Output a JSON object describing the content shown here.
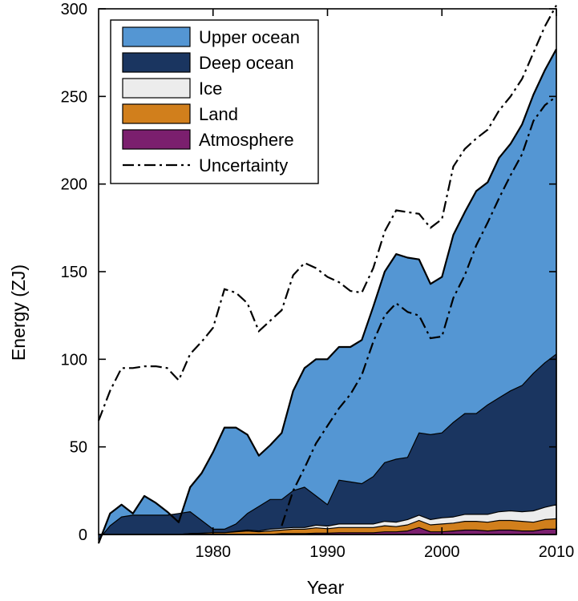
{
  "chart_data": {
    "type": "area",
    "title": "",
    "xlabel": "Year",
    "ylabel": "Energy (ZJ)",
    "xlim": [
      1970,
      2010
    ],
    "ylim": [
      0,
      300
    ],
    "x_ticks": [
      1980,
      1990,
      2000,
      2010
    ],
    "y_ticks": [
      0,
      50,
      100,
      150,
      200,
      250,
      300
    ],
    "grid": false,
    "legend_position": "top-left",
    "x": [
      1970,
      1971,
      1972,
      1973,
      1974,
      1975,
      1976,
      1977,
      1978,
      1979,
      1980,
      1981,
      1982,
      1983,
      1984,
      1985,
      1986,
      1987,
      1988,
      1989,
      1990,
      1991,
      1992,
      1993,
      1994,
      1995,
      1996,
      1997,
      1998,
      1999,
      2000,
      2001,
      2002,
      2003,
      2004,
      2005,
      2006,
      2007,
      2008,
      2009,
      2010
    ],
    "stacking_order": [
      "Atmosphere",
      "Land",
      "Ice",
      "Deep ocean",
      "Upper ocean"
    ],
    "series": [
      {
        "name": "Atmosphere",
        "color": "#7b1f6e",
        "cumulative": false,
        "values": [
          0,
          0,
          0,
          0,
          0,
          0,
          0,
          0,
          0,
          0,
          0,
          0,
          0,
          0,
          0,
          0,
          0.5,
          0.5,
          0.5,
          0.8,
          0.8,
          1,
          1,
          1,
          1,
          1.5,
          1.5,
          2,
          4,
          1.5,
          1.5,
          2,
          2.5,
          2.5,
          2,
          2.5,
          2.5,
          2,
          2,
          3,
          3
        ]
      },
      {
        "name": "Land",
        "color": "#d17f1c",
        "cumulative": false,
        "values": [
          0,
          0,
          0,
          0,
          0,
          0,
          0,
          0,
          0.5,
          0.7,
          1,
          1,
          1.5,
          2,
          1.5,
          2,
          2,
          2.5,
          2.5,
          3,
          2.5,
          3,
          3,
          3,
          3,
          3.5,
          3,
          3.5,
          4,
          4,
          4.5,
          4.5,
          5,
          5,
          5,
          5.5,
          5.5,
          5.5,
          5,
          5.5,
          6
        ]
      },
      {
        "name": "Ice",
        "color": "#ececec",
        "cumulative": false,
        "values": [
          0,
          0,
          0,
          0,
          0,
          0,
          0,
          0,
          0,
          0,
          0,
          0,
          0.3,
          0.5,
          0.5,
          1,
          1,
          1,
          1,
          1.5,
          1.5,
          2,
          2,
          2,
          2,
          2.5,
          2.5,
          3,
          3,
          3,
          3.5,
          3.5,
          4,
          4,
          4.5,
          5,
          5.5,
          5.5,
          6.5,
          7,
          8
        ]
      },
      {
        "name": "Deep ocean",
        "color": "#1a3560",
        "cumulative": true,
        "values": [
          -3,
          5,
          10,
          11,
          11,
          11,
          11,
          12,
          13,
          8,
          3,
          3,
          6,
          12,
          16,
          20,
          20,
          25,
          27,
          22,
          17,
          31,
          30,
          29,
          33,
          41,
          43,
          44,
          58,
          57,
          58,
          64,
          69,
          69,
          74,
          78,
          82,
          85,
          92,
          98,
          103
        ]
      },
      {
        "name": "Upper ocean",
        "color": "#5496d3",
        "cumulative": true,
        "values": [
          -5,
          12,
          17,
          12,
          22,
          18,
          13,
          7,
          27,
          35,
          47,
          61,
          61,
          57,
          45,
          51,
          58,
          82,
          95,
          100,
          100,
          107,
          107,
          111,
          130,
          150,
          160,
          158,
          157,
          143,
          147,
          171,
          184,
          196,
          201,
          215,
          223,
          234,
          251,
          265,
          277
        ]
      }
    ],
    "uncertainty": {
      "name": "Uncertainty",
      "color": "#000000",
      "upper": [
        65,
        82,
        95,
        95,
        96,
        96,
        95,
        88,
        103,
        110,
        118,
        140,
        138,
        132,
        116,
        122,
        128,
        148,
        155,
        152,
        147,
        144,
        139,
        138,
        152,
        173,
        185,
        184,
        183,
        175,
        180,
        210,
        220,
        226,
        231,
        242,
        250,
        260,
        275,
        290,
        302
      ],
      "lower": [
        null,
        null,
        null,
        null,
        null,
        null,
        null,
        null,
        null,
        null,
        null,
        null,
        null,
        null,
        null,
        null,
        5,
        25,
        38,
        52,
        62,
        72,
        80,
        91,
        110,
        125,
        132,
        127,
        125,
        112,
        113,
        135,
        148,
        165,
        178,
        192,
        205,
        217,
        236,
        245,
        250
      ]
    }
  }
}
